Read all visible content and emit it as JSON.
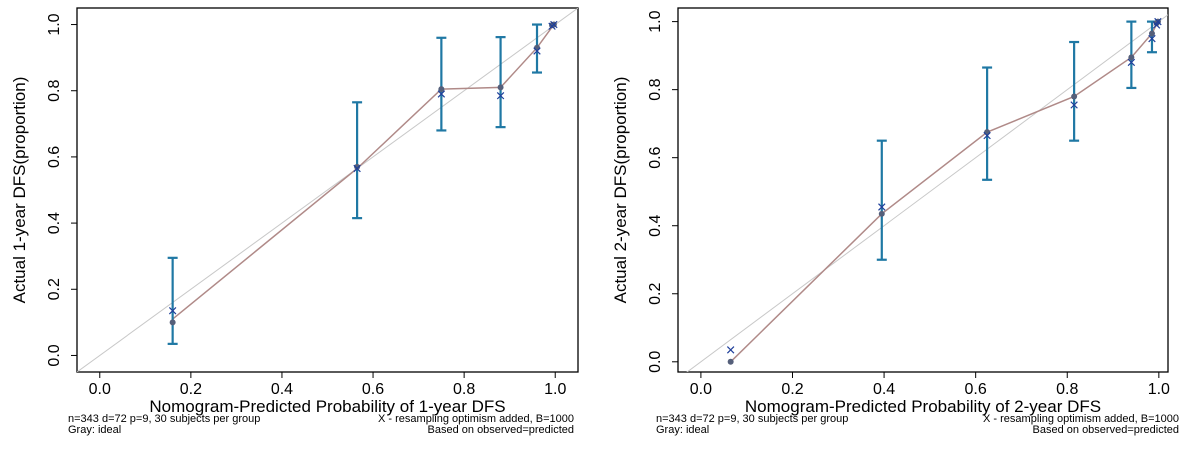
{
  "chart_data": [
    {
      "type": "scatter",
      "title": "",
      "xlabel": "Nomogram-Predicted Probability of 1-year DFS",
      "ylabel": "Actual 1-year DFS(proportion)",
      "xlim": [
        -0.05,
        1.05
      ],
      "ylim": [
        -0.05,
        1.05
      ],
      "xticks": [
        "0.0",
        "0.2",
        "0.4",
        "0.6",
        "0.8",
        "1.0"
      ],
      "yticks": [
        "0.0",
        "0.2",
        "0.4",
        "0.6",
        "0.8",
        "1.0"
      ],
      "grid": false,
      "series": [
        {
          "x": [
            0.16,
            0.565,
            0.75,
            0.88,
            0.96,
            0.993,
            0.997
          ],
          "y": [
            0.1,
            0.57,
            0.805,
            0.81,
            0.93,
            0.998,
            1.0
          ],
          "low": [
            0.035,
            0.415,
            0.68,
            0.69,
            0.855,
            0.99,
            0.995
          ],
          "high": [
            0.295,
            0.765,
            0.96,
            0.962,
            1.0,
            1.0,
            1.0
          ]
        },
        {
          "x": [
            0.16,
            0.565,
            0.75,
            0.88,
            0.96,
            0.993,
            0.997
          ],
          "y": [
            0.135,
            0.565,
            0.79,
            0.785,
            0.92,
            0.995,
            1.0
          ]
        }
      ],
      "calibration_line": {
        "x": [
          0.16,
          0.565,
          0.75,
          0.88,
          0.96,
          0.997
        ],
        "y": [
          0.11,
          0.565,
          0.805,
          0.81,
          0.93,
          1.0
        ]
      },
      "ideal_line": {
        "x": [
          -0.05,
          1.05
        ],
        "y": [
          -0.05,
          1.05
        ]
      },
      "footnotes": {
        "left1": "n=343 d=72 p=9, 30 subjects per group",
        "left2": "Gray: ideal",
        "right1": "X - resampling optimism added, B=1000",
        "right2": "Based on observed=predicted"
      },
      "colors": {
        "errorbar": "#1f78a4",
        "point": "#555f7a",
        "cross": "#1f3f9a",
        "calibration": "#b08a88",
        "ideal": "#c8c8c8"
      }
    },
    {
      "type": "scatter",
      "title": "",
      "xlabel": "Nomogram-Predicted Probability of 2-year DFS",
      "ylabel": "Actual 2-year DFS(proportion)",
      "xlim": [
        -0.05,
        1.02
      ],
      "ylim": [
        -0.03,
        1.04
      ],
      "xticks": [
        "0.0",
        "0.2",
        "0.4",
        "0.6",
        "0.8",
        "1.0"
      ],
      "yticks": [
        "0.0",
        "0.2",
        "0.4",
        "0.6",
        "0.8",
        "1.0"
      ],
      "grid": false,
      "series": [
        {
          "x": [
            0.065,
            0.395,
            0.625,
            0.815,
            0.94,
            0.985,
            0.995,
            0.998
          ],
          "y": [
            0.0,
            0.435,
            0.675,
            0.78,
            0.895,
            0.965,
            0.995,
            1.0
          ],
          "low": [
            null,
            0.3,
            0.535,
            0.65,
            0.805,
            0.91,
            0.99,
            0.995
          ],
          "high": [
            null,
            0.65,
            0.865,
            0.94,
            1.0,
            1.0,
            1.0,
            1.0
          ]
        },
        {
          "x": [
            0.065,
            0.395,
            0.625,
            0.815,
            0.94,
            0.985,
            0.995,
            0.998
          ],
          "y": [
            0.035,
            0.455,
            0.665,
            0.755,
            0.88,
            0.95,
            0.99,
            1.0
          ]
        }
      ],
      "calibration_line": {
        "x": [
          0.065,
          0.395,
          0.625,
          0.815,
          0.94,
          0.985,
          0.998
        ],
        "y": [
          0.0,
          0.435,
          0.675,
          0.78,
          0.895,
          0.965,
          1.0
        ]
      },
      "ideal_line": {
        "x": [
          -0.05,
          1.02
        ],
        "y": [
          -0.05,
          1.02
        ]
      },
      "footnotes": {
        "left1": "n=343 d=72 p=9, 30 subjects per group",
        "left2": "Gray: ideal",
        "right1": "X - resampling optimism added, B=1000",
        "right2": "Based on observed=predicted"
      },
      "colors": {
        "errorbar": "#1f78a4",
        "point": "#555f7a",
        "cross": "#1f3f9a",
        "calibration": "#b08a88",
        "ideal": "#c8c8c8"
      }
    }
  ]
}
